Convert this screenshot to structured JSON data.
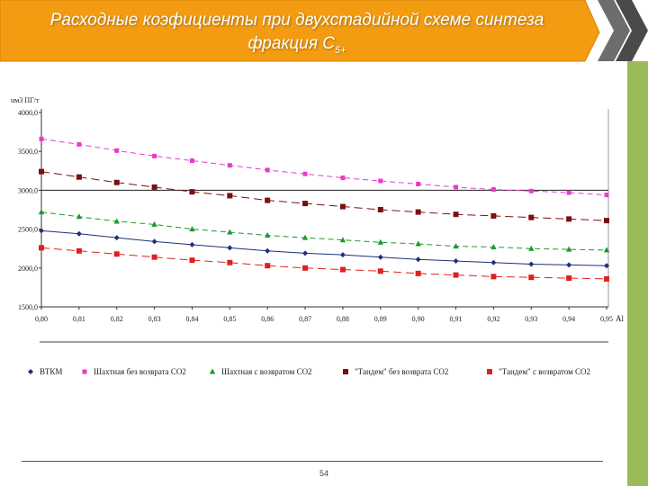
{
  "slide": {
    "title_line1": "Расходные коэфициенты при двухстадийной схеме синтеза",
    "title_line2": "фракция C",
    "title_sub": "5+",
    "page_number": "54",
    "accent_color": "#f39c12",
    "side_bar_color": "#9bbb59"
  },
  "chart_data": {
    "type": "line",
    "ylabel": "нм3 ПГ/т",
    "xlabel": "Al",
    "ylim": [
      1500,
      4000
    ],
    "yticks": [
      "1500,0",
      "2000,0",
      "2500,0",
      "3000,0",
      "3500,0",
      "4000,0"
    ],
    "ytick_values": [
      1500,
      2000,
      2500,
      3000,
      3500,
      4000
    ],
    "categories": [
      "0,80",
      "0,81",
      "0,82",
      "0,83",
      "0,84",
      "0,85",
      "0,86",
      "0,87",
      "0,88",
      "0,89",
      "0,90",
      "0,91",
      "0,92",
      "0,93",
      "0,94",
      "0,95"
    ],
    "reference_line": 3000,
    "legend_position": "bottom",
    "series": [
      {
        "name": "ВТКМ",
        "color": "#1f2f7a",
        "marker": "diamond",
        "dash": "",
        "values": [
          2480,
          2440,
          2390,
          2340,
          2300,
          2260,
          2220,
          2190,
          2170,
          2140,
          2110,
          2090,
          2070,
          2050,
          2040,
          2030
        ]
      },
      {
        "name": "Шахтная без возврата CO2",
        "color": "#e83cc8",
        "marker": "square-small",
        "dash": "6,4",
        "values": [
          3660,
          3590,
          3510,
          3440,
          3380,
          3320,
          3260,
          3210,
          3160,
          3120,
          3080,
          3040,
          3010,
          2990,
          2970,
          2940
        ]
      },
      {
        "name": "Шахтная с возвратом CO2",
        "color": "#1a9a2a",
        "marker": "triangle",
        "dash": "6,4",
        "values": [
          2720,
          2660,
          2600,
          2560,
          2500,
          2460,
          2420,
          2390,
          2360,
          2330,
          2310,
          2280,
          2270,
          2250,
          2240,
          2230
        ]
      },
      {
        "name": "\"Тандем\" без возврата CO2",
        "color": "#7a1010",
        "marker": "square",
        "dash": "9,5",
        "values": [
          3240,
          3170,
          3100,
          3040,
          2980,
          2930,
          2870,
          2830,
          2790,
          2750,
          2720,
          2690,
          2670,
          2650,
          2630,
          2610
        ]
      },
      {
        "name": "\"Тандем\" с возвратом CO2",
        "color": "#e02020",
        "marker": "square",
        "dash": "9,5",
        "values": [
          2260,
          2220,
          2180,
          2140,
          2100,
          2070,
          2030,
          2000,
          1980,
          1960,
          1930,
          1910,
          1890,
          1880,
          1870,
          1860
        ]
      }
    ]
  }
}
